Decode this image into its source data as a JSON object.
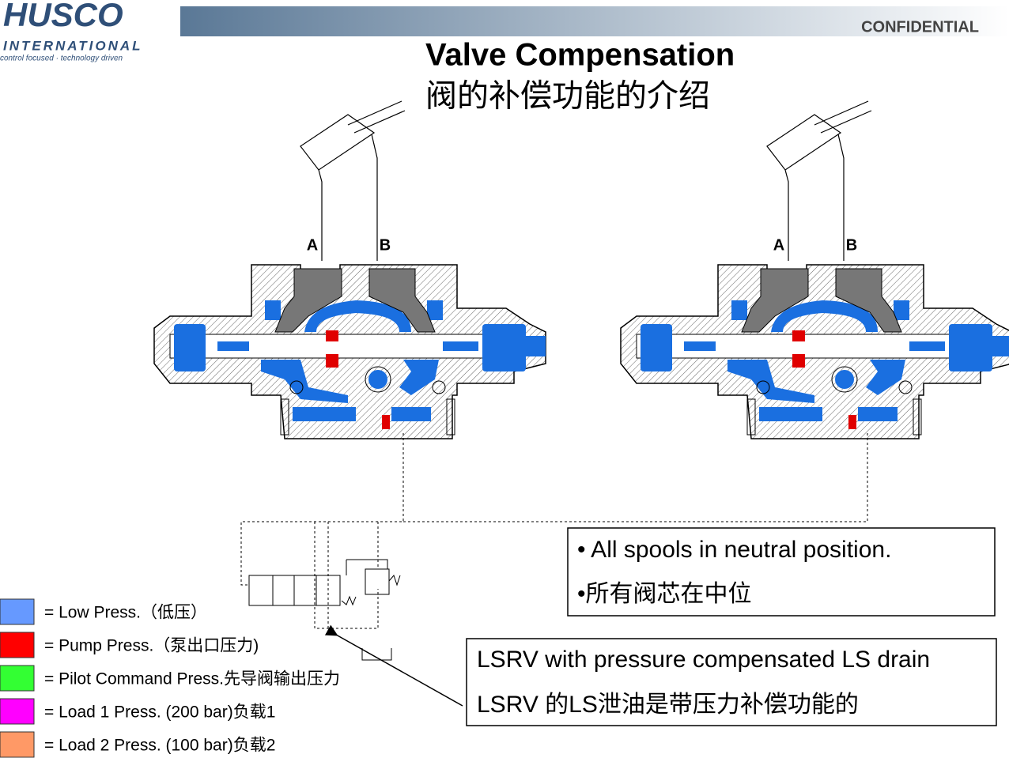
{
  "header": {
    "logo": "HUSCO",
    "logo_sub": "INTERNATIONAL",
    "tagline": "control focused · technology driven",
    "confidential": "CONFIDENTIAL"
  },
  "title": "Valve Compensation",
  "subtitle": "阀的补偿功能的介绍",
  "valves": [
    {
      "port_a": "A",
      "port_b": "B"
    },
    {
      "port_a": "A",
      "port_b": "B"
    }
  ],
  "legend": [
    {
      "color": "#6699ff",
      "label": "= Low Press.（低压）"
    },
    {
      "color": "#ff0000",
      "label": "= Pump Press.（泵出口压力)"
    },
    {
      "color": "#33ff33",
      "label": "= Pilot Command Press.先导阀输出压力"
    },
    {
      "color": "#ff00ff",
      "label": "= Load 1 Press. (200 bar)负载1"
    },
    {
      "color": "#ff9966",
      "label": "= Load 2 Press. (100 bar)负载2"
    }
  ],
  "notes": [
    {
      "lines": [
        "• All spools in neutral position.",
        "•所有阀芯在中位"
      ]
    },
    {
      "lines": [
        "LSRV with pressure compensated LS drain",
        "LSRV 的LS泄油是带压力补偿功能的"
      ]
    }
  ]
}
